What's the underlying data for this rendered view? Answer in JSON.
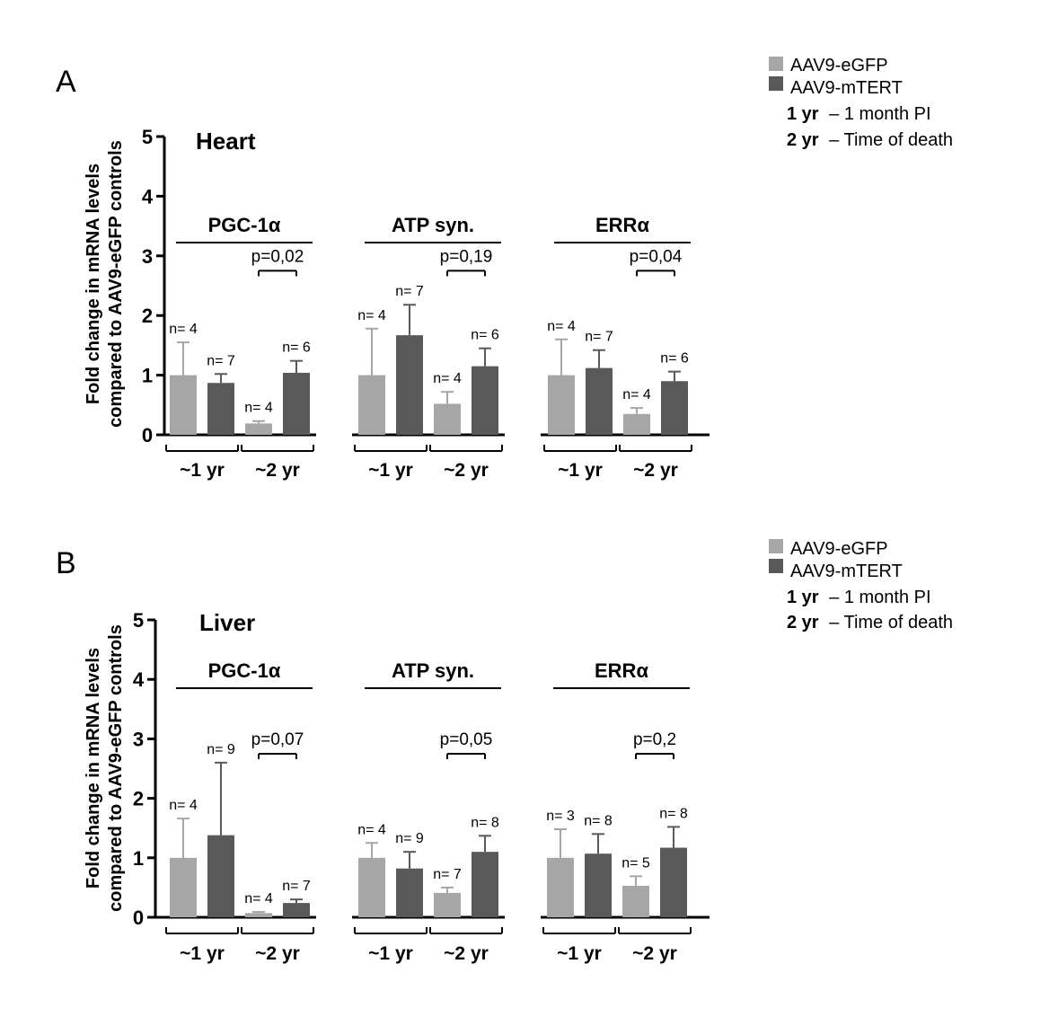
{
  "colors": {
    "egfp": "#a6a6a6",
    "mtert": "#595959",
    "axis": "#000000"
  },
  "legend": {
    "entries": [
      "AAV9-eGFP",
      "AAV9-mTERT"
    ],
    "notes": [
      {
        "bold": "1 yr",
        "text": "– 1 month PI"
      },
      {
        "bold": "2 yr",
        "text": "– Time of death"
      }
    ]
  },
  "chart_data": [
    {
      "type": "bar",
      "panel": "A",
      "title": "Heart",
      "ylabel": [
        "Fold change in mRNA levels",
        "compared to AAV9-eGFP controls"
      ],
      "ylim": [
        0,
        5
      ],
      "yticks": [
        "0",
        "1",
        "2",
        "3",
        "4",
        "5"
      ],
      "series": [
        "AAV9-eGFP",
        "AAV9-mTERT"
      ],
      "groups": [
        {
          "label": "PGC-1α",
          "p": "p=0,02",
          "subgroups": [
            {
              "label": "~1 yr",
              "bars": [
                {
                  "series": "AAV9-eGFP",
                  "value": 1.0,
                  "err": 0.55,
                  "n": "n= 4"
                },
                {
                  "series": "AAV9-mTERT",
                  "value": 0.87,
                  "err": 0.15,
                  "n": "n= 7"
                }
              ]
            },
            {
              "label": "~2 yr",
              "bars": [
                {
                  "series": "AAV9-eGFP",
                  "value": 0.19,
                  "err": 0.04,
                  "n": "n= 4"
                },
                {
                  "series": "AAV9-mTERT",
                  "value": 1.04,
                  "err": 0.2,
                  "n": "n= 6"
                }
              ]
            }
          ]
        },
        {
          "label": "ATP syn.",
          "p": "p=0,19",
          "subgroups": [
            {
              "label": "~1 yr",
              "bars": [
                {
                  "series": "AAV9-eGFP",
                  "value": 1.0,
                  "err": 0.78,
                  "n": "n= 4"
                },
                {
                  "series": "AAV9-mTERT",
                  "value": 1.67,
                  "err": 0.51,
                  "n": "n= 7"
                }
              ]
            },
            {
              "label": "~2 yr",
              "bars": [
                {
                  "series": "AAV9-eGFP",
                  "value": 0.52,
                  "err": 0.2,
                  "n": "n= 4"
                },
                {
                  "series": "AAV9-mTERT",
                  "value": 1.15,
                  "err": 0.3,
                  "n": "n= 6"
                }
              ]
            }
          ]
        },
        {
          "label": "ERRα",
          "p": "p=0,04",
          "subgroups": [
            {
              "label": "~1 yr",
              "bars": [
                {
                  "series": "AAV9-eGFP",
                  "value": 1.0,
                  "err": 0.6,
                  "n": "n= 4"
                },
                {
                  "series": "AAV9-mTERT",
                  "value": 1.12,
                  "err": 0.3,
                  "n": "n= 7"
                }
              ]
            },
            {
              "label": "~2 yr",
              "bars": [
                {
                  "series": "AAV9-eGFP",
                  "value": 0.35,
                  "err": 0.1,
                  "n": "n= 4"
                },
                {
                  "series": "AAV9-mTERT",
                  "value": 0.9,
                  "err": 0.16,
                  "n": "n= 6"
                }
              ]
            }
          ]
        }
      ]
    },
    {
      "type": "bar",
      "panel": "B",
      "title": "Liver",
      "ylabel": [
        "Fold change in mRNA levels",
        "compared to AAV9-eGFP controls"
      ],
      "ylim": [
        0,
        5
      ],
      "yticks": [
        "0",
        "1",
        "2",
        "3",
        "4",
        "5"
      ],
      "series": [
        "AAV9-eGFP",
        "AAV9-mTERT"
      ],
      "groups": [
        {
          "label": "PGC-1α",
          "p": "p=0,07",
          "subgroups": [
            {
              "label": "~1 yr",
              "bars": [
                {
                  "series": "AAV9-eGFP",
                  "value": 1.0,
                  "err": 0.66,
                  "n": "n= 4"
                },
                {
                  "series": "AAV9-mTERT",
                  "value": 1.38,
                  "err": 1.22,
                  "n": "n= 9"
                }
              ]
            },
            {
              "label": "~2 yr",
              "bars": [
                {
                  "series": "AAV9-eGFP",
                  "value": 0.07,
                  "err": 0.02,
                  "n": "n= 4"
                },
                {
                  "series": "AAV9-mTERT",
                  "value": 0.24,
                  "err": 0.06,
                  "n": "n= 7"
                }
              ]
            }
          ]
        },
        {
          "label": "ATP syn.",
          "p": "p=0,05",
          "subgroups": [
            {
              "label": "~1 yr",
              "bars": [
                {
                  "series": "AAV9-eGFP",
                  "value": 1.0,
                  "err": 0.25,
                  "n": "n= 4"
                },
                {
                  "series": "AAV9-mTERT",
                  "value": 0.82,
                  "err": 0.28,
                  "n": "n= 9"
                }
              ]
            },
            {
              "label": "~2 yr",
              "bars": [
                {
                  "series": "AAV9-eGFP",
                  "value": 0.41,
                  "err": 0.09,
                  "n": "n= 7"
                },
                {
                  "series": "AAV9-mTERT",
                  "value": 1.1,
                  "err": 0.27,
                  "n": "n= 8"
                }
              ]
            }
          ]
        },
        {
          "label": "ERRα",
          "p": "p=0,2",
          "subgroups": [
            {
              "label": "~1 yr",
              "bars": [
                {
                  "series": "AAV9-eGFP",
                  "value": 1.0,
                  "err": 0.48,
                  "n": "n= 3"
                },
                {
                  "series": "AAV9-mTERT",
                  "value": 1.07,
                  "err": 0.33,
                  "n": "n= 8"
                }
              ]
            },
            {
              "label": "~2 yr",
              "bars": [
                {
                  "series": "AAV9-eGFP",
                  "value": 0.53,
                  "err": 0.16,
                  "n": "n= 5"
                },
                {
                  "series": "AAV9-mTERT",
                  "value": 1.17,
                  "err": 0.35,
                  "n": "n= 8"
                }
              ]
            }
          ]
        }
      ]
    }
  ]
}
